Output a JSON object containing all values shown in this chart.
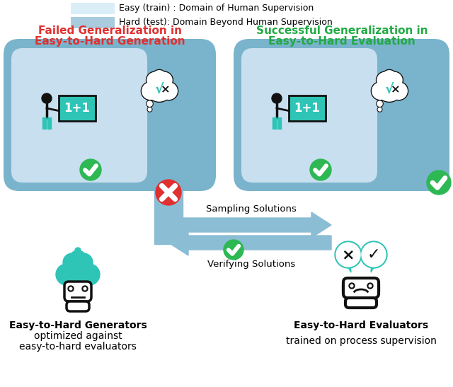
{
  "legend_easy_color": "#daeef8",
  "legend_hard_color": "#a8ccde",
  "legend_easy_text": "Easy (train) : Domain of Human Supervision",
  "legend_hard_text": "Hard (test): Domain Beyond Human Supervision",
  "left_title_line1": "Failed Generalization in",
  "left_title_line2": "Easy-to-Hard Generation",
  "left_title_color": "#e03030",
  "right_title_line1": "Successful Generalization in",
  "right_title_line2": "Easy-to-Hard Evaluation",
  "right_title_color": "#22aa44",
  "box_outer_color": "#7ab3cc",
  "box_inner_color": "#c8dff0",
  "arrow_color": "#8bbdd4",
  "sampling_label": "Sampling Solutions",
  "verifying_label": "Verifying Solutions",
  "gen_label_line1": "Easy-to-Hard Generators",
  "gen_label_line2": "optimized against",
  "gen_label_line3": "easy-to-hard evaluators",
  "eval_label_line1": "Easy-to-Hard Evaluators",
  "eval_label_line2": "",
  "eval_label_line3": "trained on process supervision",
  "teal": "#2ec4b6",
  "green": "#2db854",
  "red": "#e03030",
  "black": "#111111",
  "white": "#ffffff",
  "bg": "#ffffff"
}
